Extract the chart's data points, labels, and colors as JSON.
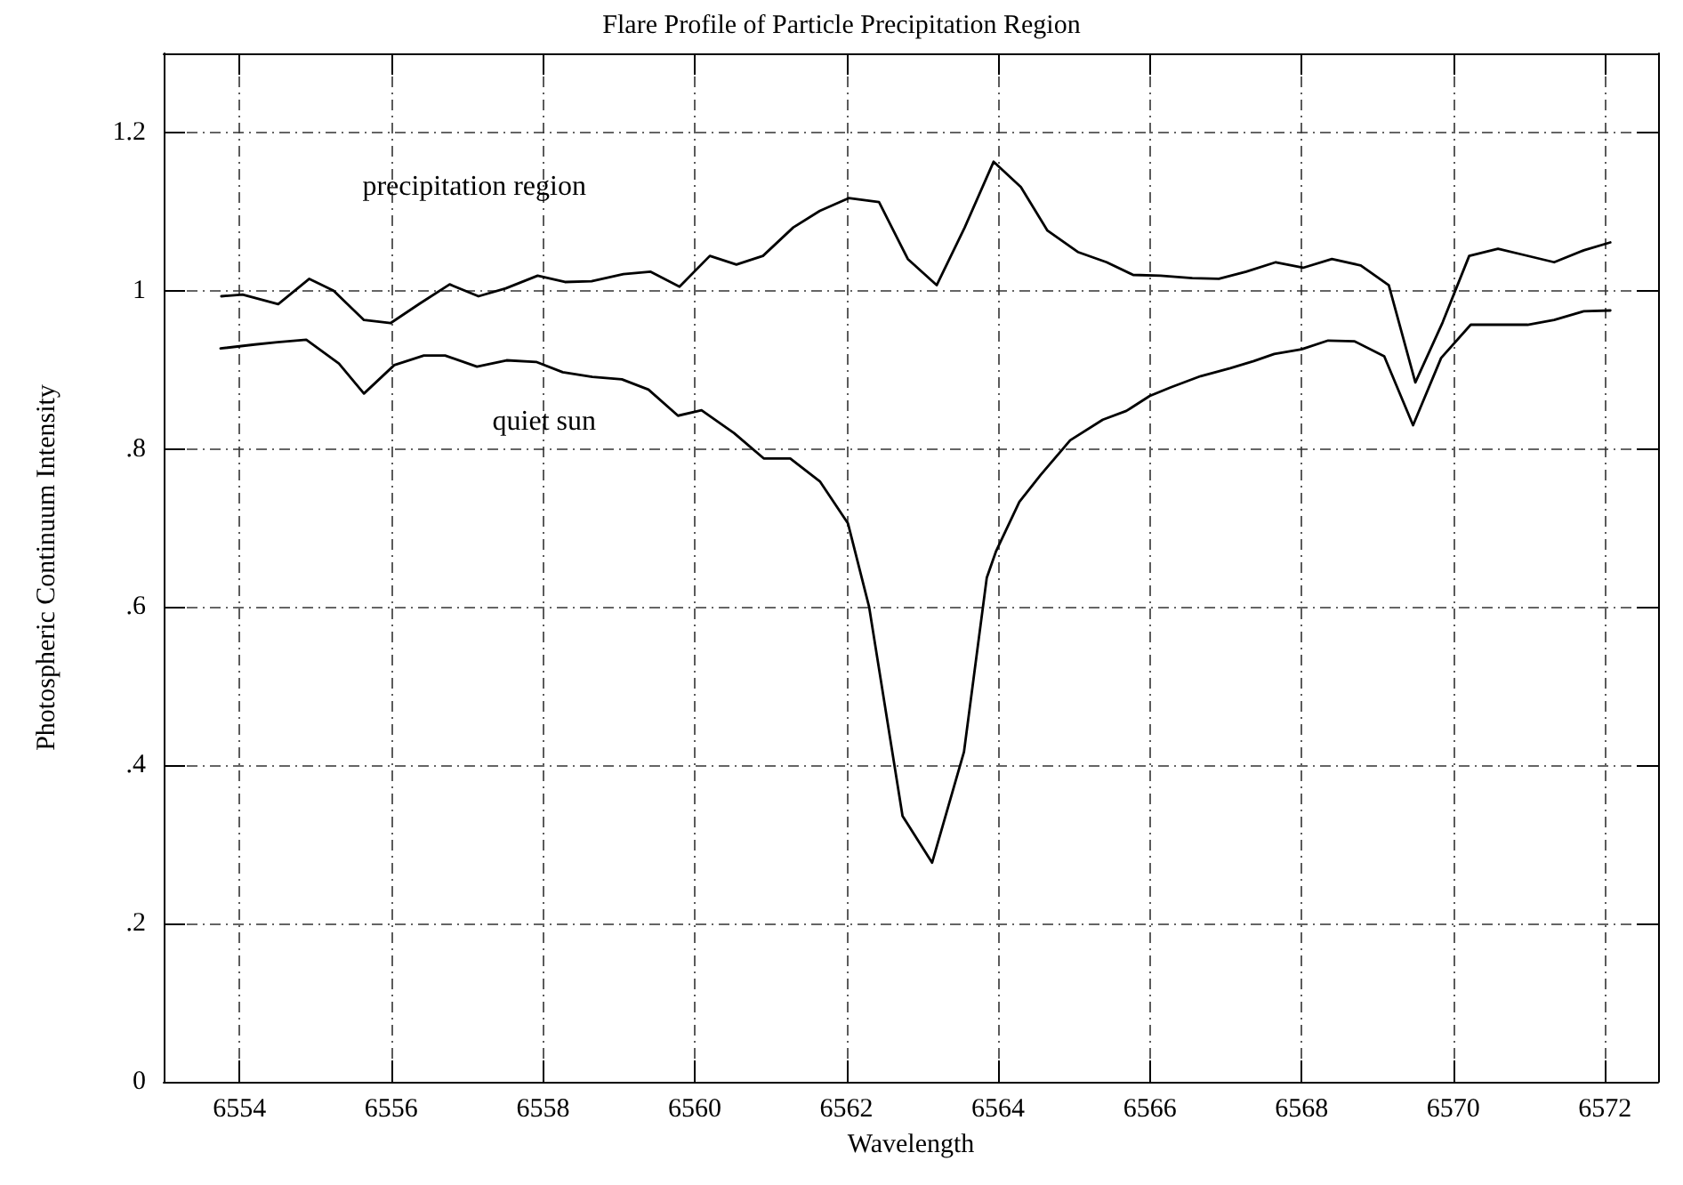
{
  "chart_data": {
    "type": "line",
    "title": "Flare Profile of Particle Precipitation Region",
    "xlabel": "Wavelength",
    "ylabel": "Photospheric Continuum Intensity",
    "series": [
      {
        "name": "precipitation region",
        "color": "#000000",
        "x": [
          6553.76,
          6554.04,
          6554.51,
          6554.92,
          6555.24,
          6555.64,
          6555.99,
          6556.38,
          6556.77,
          6557.15,
          6557.51,
          6557.93,
          6558.29,
          6558.64,
          6559.06,
          6559.42,
          6559.8,
          6560.2,
          6560.55,
          6560.9,
          6561.3,
          6561.65,
          6562.03,
          6562.43,
          6562.81,
          6563.19,
          6563.56,
          6563.94,
          6564.3,
          6564.65,
          6565.05,
          6565.43,
          6565.78,
          6566.14,
          6566.56,
          6566.91,
          6567.27,
          6567.66,
          6568.02,
          6568.4,
          6568.78,
          6569.15,
          6569.5,
          6569.86,
          6570.21,
          6570.59,
          6570.94,
          6571.33,
          6571.72,
          6572.07
        ],
        "values": [
          0.993,
          0.995,
          0.983,
          1.015,
          1.0,
          0.963,
          0.959,
          0.984,
          1.008,
          0.993,
          1.003,
          1.019,
          1.011,
          1.012,
          1.021,
          1.024,
          1.005,
          1.044,
          1.033,
          1.044,
          1.08,
          1.101,
          1.117,
          1.112,
          1.04,
          1.007,
          1.08,
          1.163,
          1.131,
          1.076,
          1.049,
          1.036,
          1.02,
          1.019,
          1.016,
          1.015,
          1.024,
          1.036,
          1.029,
          1.04,
          1.032,
          1.007,
          0.884,
          0.96,
          1.044,
          1.053,
          1.045,
          1.036,
          1.051,
          1.061
        ]
      },
      {
        "name": "quiet sun",
        "color": "#000000",
        "x": [
          6553.75,
          6554.2,
          6554.5,
          6554.88,
          6555.31,
          6555.64,
          6556.04,
          6556.43,
          6556.71,
          6557.13,
          6557.52,
          6557.91,
          6558.26,
          6558.65,
          6559.04,
          6559.39,
          6559.78,
          6560.09,
          6560.52,
          6560.91,
          6561.26,
          6561.65,
          6562.02,
          6562.3,
          6562.74,
          6563.13,
          6563.55,
          6563.85,
          6563.97,
          6564.28,
          6564.56,
          6564.95,
          6565.38,
          6565.69,
          6566.0,
          6566.28,
          6566.67,
          6567.06,
          6567.37,
          6567.64,
          6568.0,
          6568.35,
          6568.7,
          6569.09,
          6569.47,
          6569.84,
          6570.23,
          6570.58,
          6570.98,
          6571.33,
          6571.72,
          6572.07
        ],
        "values": [
          0.927,
          0.932,
          0.935,
          0.938,
          0.908,
          0.87,
          0.906,
          0.918,
          0.918,
          0.904,
          0.912,
          0.91,
          0.897,
          0.891,
          0.888,
          0.875,
          0.842,
          0.849,
          0.82,
          0.788,
          0.788,
          0.759,
          0.706,
          0.6,
          0.336,
          0.277,
          0.417,
          0.637,
          0.67,
          0.733,
          0.767,
          0.811,
          0.837,
          0.848,
          0.867,
          0.878,
          0.892,
          0.902,
          0.911,
          0.92,
          0.926,
          0.937,
          0.936,
          0.917,
          0.83,
          0.915,
          0.957,
          0.957,
          0.957,
          0.963,
          0.974,
          0.975
        ]
      }
    ],
    "xlim": [
      6553,
      6572.7
    ],
    "xticks": [
      6554,
      6556,
      6558,
      6560,
      6562,
      6564,
      6566,
      6568,
      6570,
      6572
    ],
    "ylim": [
      0,
      1.3
    ],
    "yticks": [
      {
        "value": 0,
        "label": "0"
      },
      {
        "value": 0.2,
        "label": ".2"
      },
      {
        "value": 0.4,
        "label": ".4"
      },
      {
        "value": 0.6,
        "label": ".6"
      },
      {
        "value": 0.8,
        "label": ".8"
      },
      {
        "value": 1,
        "label": "1"
      },
      {
        "value": 1.2,
        "label": "1.2"
      }
    ],
    "grid": true,
    "legend": false,
    "marker": "none",
    "line_style": "solid"
  }
}
